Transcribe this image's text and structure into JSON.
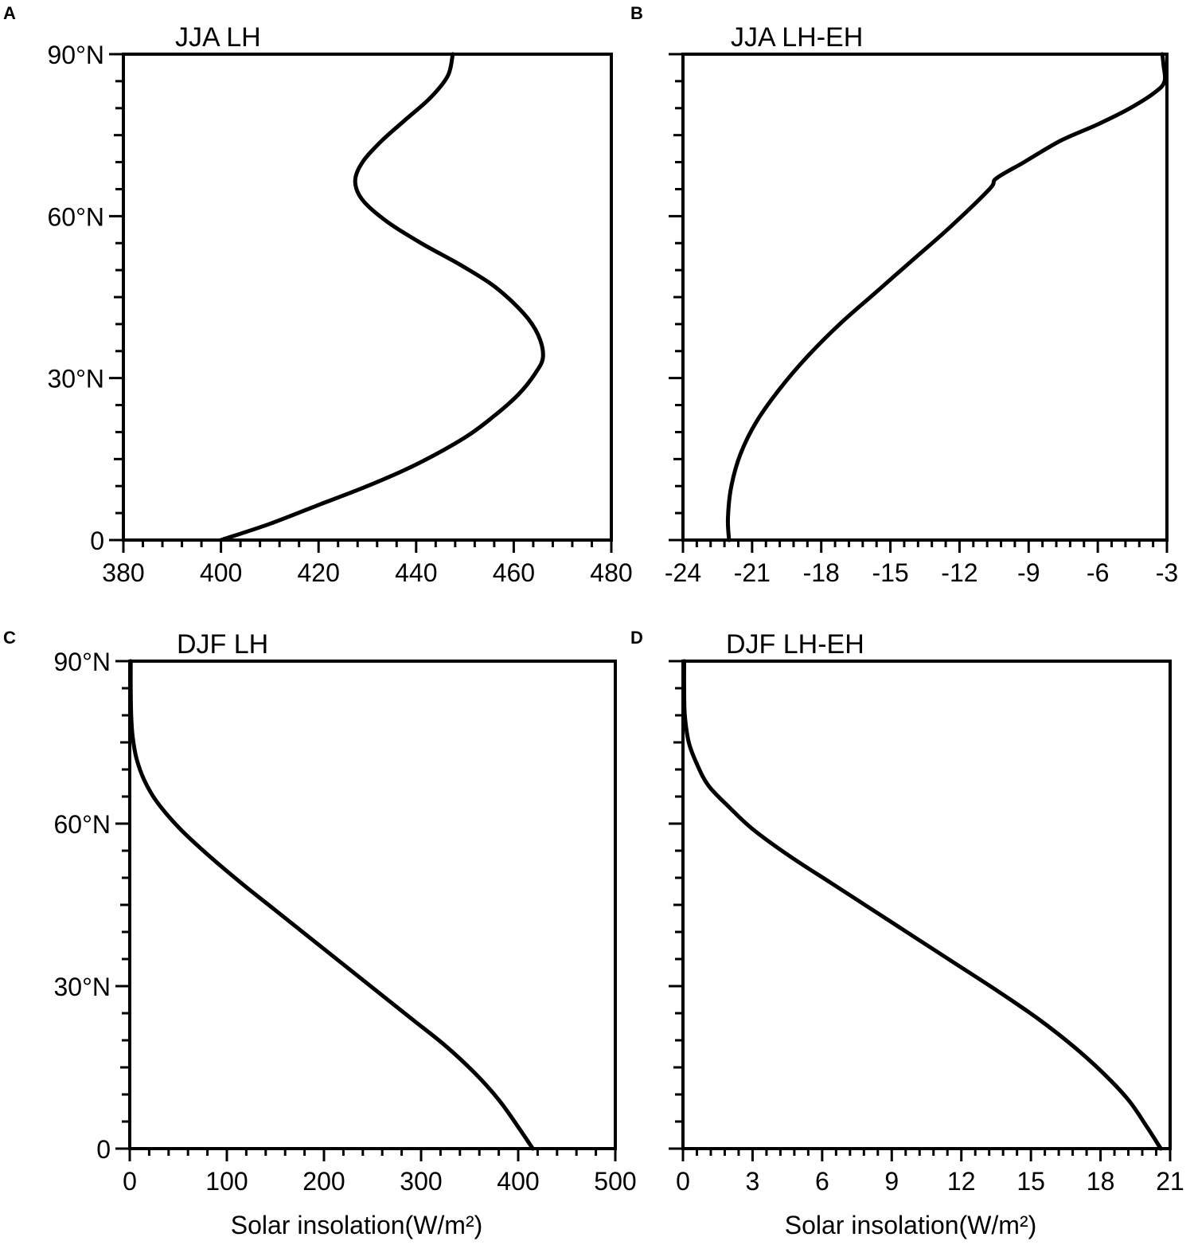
{
  "chart_data": [
    {
      "panel": "A",
      "type": "line",
      "title": "JJA LH",
      "xlabel": "",
      "xlim": [
        380,
        480
      ],
      "ylim": [
        0,
        90
      ],
      "xticks": [
        "380",
        "400",
        "420",
        "440",
        "460",
        "480"
      ],
      "xtick_values": [
        380,
        400,
        420,
        440,
        460,
        480
      ],
      "yticks": [
        "0",
        "30°N",
        "60°N",
        "90°N"
      ],
      "ytick_values": [
        0,
        30,
        60,
        90
      ],
      "series": [
        {
          "x": [
            400,
            410,
            420,
            430,
            440,
            450,
            456,
            461,
            464.5,
            466,
            465,
            462,
            456,
            449,
            441,
            434,
            429,
            427.5,
            429,
            433,
            438,
            443,
            446.5,
            447.5
          ],
          "y": [
            0,
            3,
            6.5,
            10,
            14,
            19,
            23,
            27,
            31,
            34,
            38,
            42,
            47,
            51,
            55,
            59,
            63,
            66.5,
            70,
            74,
            78,
            82,
            86,
            90
          ]
        }
      ]
    },
    {
      "panel": "B",
      "type": "line",
      "title": "JJA LH-EH",
      "xlabel": "",
      "xlim": [
        -24,
        -3
      ],
      "ylim": [
        0,
        90
      ],
      "xticks": [
        "-24",
        "-21",
        "-18",
        "-15",
        "-12",
        "-9",
        "-6",
        "-3"
      ],
      "xtick_values": [
        -24,
        -21,
        -18,
        -15,
        -12,
        -9,
        -6,
        -3
      ],
      "yticks": [
        "0",
        "30°N",
        "60°N",
        "90°N"
      ],
      "ytick_values": [
        0,
        30,
        60,
        90
      ],
      "series": [
        {
          "x": [
            -22,
            -22.05,
            -21.9,
            -21.5,
            -20.8,
            -19.8,
            -18.6,
            -17.2,
            -15.6,
            -14,
            -12.4,
            -10.7,
            -10.4,
            -9.2,
            -7.6,
            -6,
            -4.6,
            -3.5,
            -3.1,
            -3.15,
            -3.2
          ],
          "y": [
            0,
            4,
            10,
            16,
            22,
            28,
            34,
            40,
            46,
            52,
            58,
            65,
            67,
            70,
            74,
            77,
            80,
            83,
            85,
            88,
            90
          ]
        }
      ]
    },
    {
      "panel": "C",
      "type": "line",
      "title": "DJF LH",
      "xlabel": "Solar insolation(W/m²)",
      "xlim": [
        0,
        500
      ],
      "ylim": [
        0,
        90
      ],
      "xticks": [
        "0",
        "100",
        "200",
        "300",
        "400",
        "500"
      ],
      "xtick_values": [
        0,
        100,
        200,
        300,
        400,
        500
      ],
      "yticks": [
        "0",
        "30°N",
        "60°N",
        "90°N"
      ],
      "ytick_values": [
        0,
        30,
        60,
        90
      ],
      "series": [
        {
          "x": [
            415,
            400,
            380,
            355,
            325,
            290,
            255,
            220,
            185,
            150,
            115,
            82,
            52,
            28,
            15,
            7,
            3,
            1.5,
            1,
            1
          ],
          "y": [
            0,
            4,
            9,
            14,
            19,
            24,
            29,
            34,
            39,
            44,
            49,
            54,
            59,
            64,
            68,
            72,
            76,
            80,
            85,
            90
          ]
        }
      ]
    },
    {
      "panel": "D",
      "type": "line",
      "title": "DJF LH-EH",
      "xlabel": "Solar insolation(W/m²)",
      "xlim": [
        0,
        21
      ],
      "ylim": [
        0,
        90
      ],
      "xticks": [
        "0",
        "3",
        "6",
        "9",
        "12",
        "15",
        "18",
        "21"
      ],
      "xtick_values": [
        0,
        3,
        6,
        9,
        12,
        15,
        18,
        21
      ],
      "yticks": [
        "0",
        "30°N",
        "60°N",
        "90°N"
      ],
      "ytick_values": [
        0,
        30,
        60,
        90
      ],
      "series": [
        {
          "x": [
            20.6,
            20,
            19.2,
            18.1,
            16.8,
            15.3,
            13.6,
            11.8,
            10,
            8.2,
            6.4,
            4.6,
            3,
            2,
            1.1,
            0.6,
            0.25,
            0.08,
            0.05,
            0.05
          ],
          "y": [
            0,
            4,
            9,
            14,
            19,
            24,
            29,
            34,
            39,
            44,
            49,
            54,
            59,
            63,
            67,
            71,
            75,
            80,
            85,
            90
          ]
        }
      ]
    }
  ]
}
